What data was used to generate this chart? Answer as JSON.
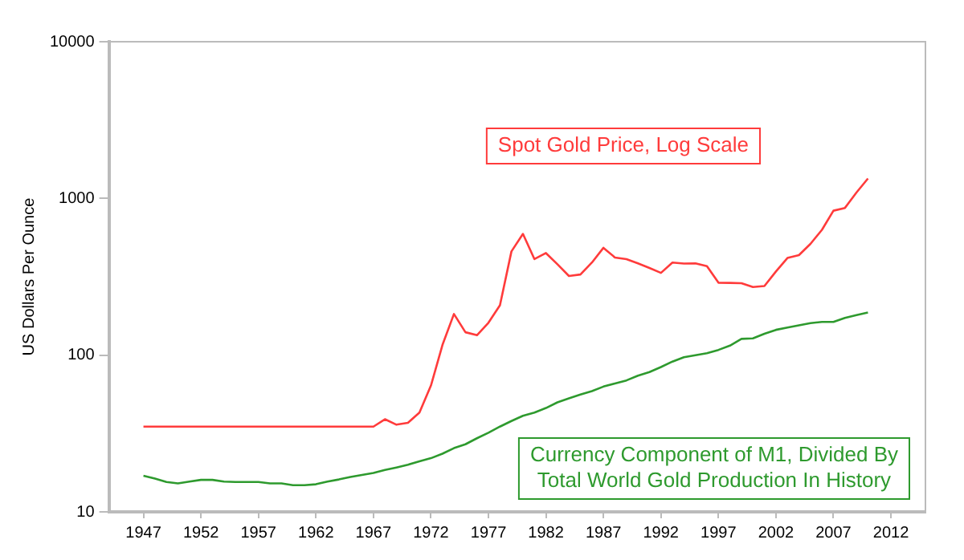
{
  "chart_data": {
    "type": "line",
    "ylabel": "US Dollars Per Ounce",
    "log": "y",
    "grid": false,
    "legend": false,
    "marker": "none",
    "line_style": "solid",
    "x": [
      1947,
      1948,
      1949,
      1950,
      1951,
      1952,
      1953,
      1954,
      1955,
      1956,
      1957,
      1958,
      1959,
      1960,
      1961,
      1962,
      1963,
      1964,
      1965,
      1966,
      1967,
      1968,
      1969,
      1970,
      1971,
      1972,
      1973,
      1974,
      1975,
      1976,
      1977,
      1978,
      1979,
      1980,
      1981,
      1982,
      1983,
      1984,
      1985,
      1986,
      1987,
      1988,
      1989,
      1990,
      1991,
      1992,
      1993,
      1994,
      1995,
      1996,
      1997,
      1998,
      1999,
      2000,
      2001,
      2002,
      2003,
      2004,
      2005,
      2006,
      2007,
      2008,
      2009,
      2010
    ],
    "xlim": [
      1944,
      2015
    ],
    "xticks": [
      1947,
      1952,
      1957,
      1962,
      1967,
      1972,
      1977,
      1982,
      1987,
      1992,
      1997,
      2002,
      2007,
      2012
    ],
    "ylim": [
      10,
      10000
    ],
    "yticks": [
      10,
      100,
      1000,
      10000
    ],
    "series": [
      {
        "name": "Spot Gold Price, Log Scale",
        "color": "#ff3b3b",
        "values": [
          35,
          35,
          35,
          35,
          35,
          35,
          35,
          35,
          35,
          35,
          35,
          35,
          35,
          35,
          35,
          35,
          35,
          35,
          35,
          35,
          35,
          39,
          36,
          37,
          43,
          64,
          116,
          183,
          140,
          134,
          161,
          208,
          459,
          594,
          410,
          448,
          380,
          320,
          327,
          390,
          484,
          420,
          410,
          385,
          360,
          335,
          390,
          384,
          385,
          370,
          290,
          289,
          288,
          272,
          276,
          342,
          417,
          435,
          513,
          630,
          835,
          870,
          1090,
          1340
        ]
      },
      {
        "name": "Currency Component of M1, Divided By\nTotal World Gold Production In History",
        "color": "#2e9a2e",
        "values": [
          17,
          16.3,
          15.5,
          15.2,
          15.6,
          16,
          16,
          15.6,
          15.5,
          15.5,
          15.5,
          15.2,
          15.2,
          14.8,
          14.8,
          15,
          15.6,
          16.1,
          16.7,
          17.2,
          17.7,
          18.5,
          19.2,
          20,
          21,
          22,
          23.5,
          25.5,
          27,
          29.5,
          32,
          35,
          38,
          41,
          43,
          46,
          50,
          53,
          56,
          59,
          63,
          66,
          69,
          74,
          78,
          84,
          91,
          97,
          100,
          103,
          108,
          115,
          127,
          128,
          137,
          145,
          150,
          155,
          160,
          163,
          163,
          173,
          180,
          187
        ]
      }
    ]
  }
}
